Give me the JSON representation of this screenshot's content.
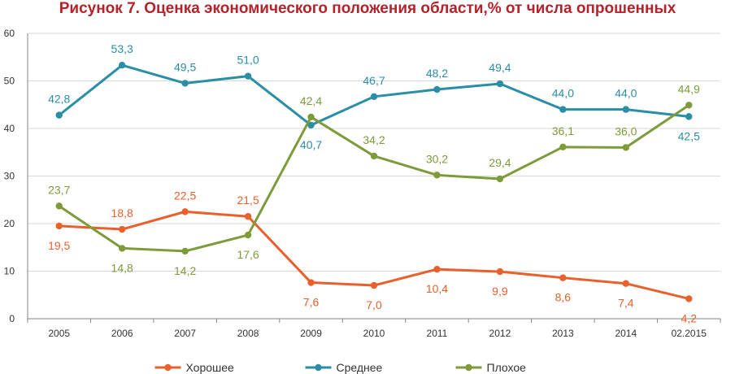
{
  "chart_data": {
    "type": "line",
    "title": "Рисунок 7. Оценка экономического положения области,% от числа опрошенных",
    "xlabel": "",
    "ylabel": "",
    "ylim": [
      0,
      60
    ],
    "yticks": [
      "0",
      "10",
      "20",
      "30",
      "40",
      "50",
      "60"
    ],
    "categories": [
      "2005",
      "2006",
      "2007",
      "2008",
      "2009",
      "2010",
      "2011",
      "2012",
      "2013",
      "2014",
      "02.2015"
    ],
    "grid": true,
    "legend": "bottom",
    "series": [
      {
        "name": "Хорошее",
        "color": "#e8602c",
        "values": [
          19.5,
          18.8,
          22.5,
          21.5,
          7.6,
          7.0,
          10.4,
          9.9,
          8.6,
          7.4,
          4.2
        ],
        "labels": [
          "19,5",
          "18,8",
          "22,5",
          "21,5",
          "7,6",
          "7,0",
          "10,4",
          "9,9",
          "8,6",
          "7,4",
          "4,2"
        ]
      },
      {
        "name": "Среднее",
        "color": "#2a8ea6",
        "values": [
          42.8,
          53.3,
          49.5,
          51.0,
          40.7,
          46.7,
          48.2,
          49.4,
          44.0,
          44.0,
          42.5
        ],
        "labels": [
          "42,8",
          "53,3",
          "49,5",
          "51,0",
          "40,7",
          "46,7",
          "48,2",
          "49,4",
          "44,0",
          "44,0",
          "42,5"
        ]
      },
      {
        "name": "Плохое",
        "color": "#7e9b3a",
        "values": [
          23.7,
          14.8,
          14.2,
          17.6,
          42.4,
          34.2,
          30.2,
          29.4,
          36.1,
          36.0,
          44.9
        ],
        "labels": [
          "23,7",
          "14,8",
          "14,2",
          "17,6",
          "42,4",
          "34,2",
          "30,2",
          "29,4",
          "36,1",
          "36,0",
          "44,9"
        ]
      }
    ]
  }
}
